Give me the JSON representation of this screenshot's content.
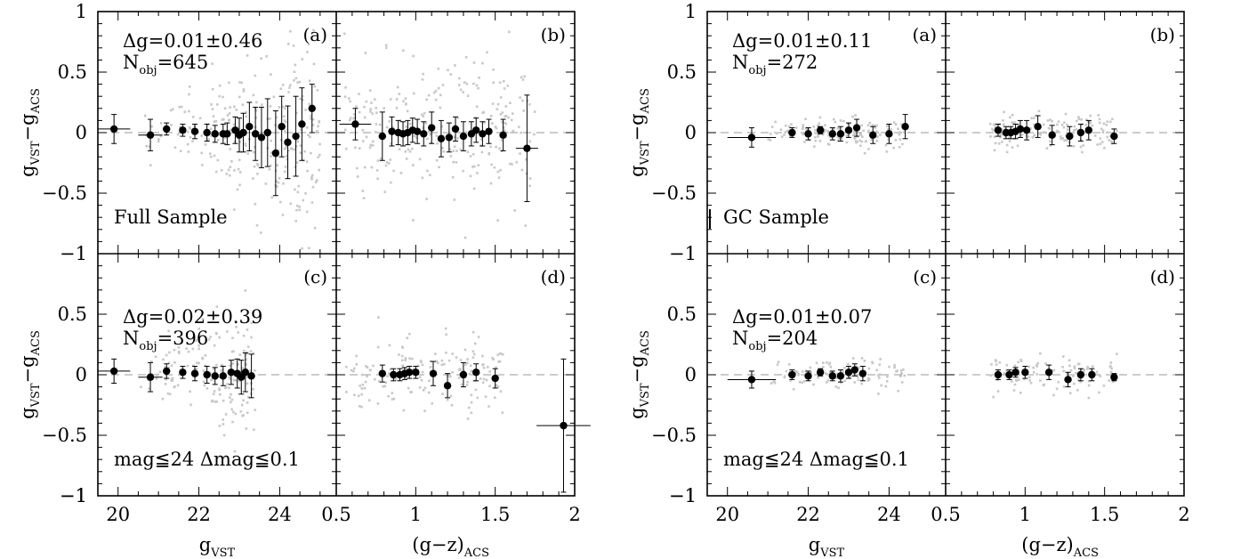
{
  "figures": [
    {
      "sample_label": "Full Sample",
      "panels": [
        {
          "id": "a",
          "label": "(a)",
          "stat": "Δg=0.01±0.46",
          "nobj": "=645"
        },
        {
          "id": "b",
          "label": "(b)"
        },
        {
          "id": "c",
          "label": "(c)",
          "stat": "Δg=0.02±0.39",
          "nobj": "=396",
          "cut": "mag≦24  Δmag≦0.1"
        },
        {
          "id": "d",
          "label": "(d)"
        }
      ]
    },
    {
      "sample_label": "GC Sample",
      "panels": [
        {
          "id": "a",
          "label": "(a)",
          "stat": "Δg=0.01±0.11",
          "nobj": "=272"
        },
        {
          "id": "b",
          "label": "(b)"
        },
        {
          "id": "c",
          "label": "(c)",
          "stat": "Δg=0.01±0.07",
          "nobj": "=204",
          "cut": "mag≦24  Δmag≦0.1"
        },
        {
          "id": "d",
          "label": "(d)"
        }
      ]
    }
  ],
  "axes": {
    "ylabel_main": "g",
    "ylabel_sub1": "VST",
    "ylabel_dash": "−g",
    "ylabel_sub2": "ACS",
    "xlabel_left_main": "g",
    "xlabel_left_sub": "VST",
    "xlabel_right_main": "(g−z)",
    "xlabel_right_sub": "ACS",
    "yticks": [
      "1",
      "0.5",
      "0",
      "−0.5",
      "−1"
    ],
    "xticks_left": [
      "20",
      "22",
      "24"
    ],
    "xticks_right": [
      "0.5",
      "1",
      "1.5",
      "2"
    ]
  },
  "chart_data": [
    {
      "type": "scatter",
      "figure": "Full Sample",
      "panel": "a",
      "xlim": [
        19.5,
        25.4
      ],
      "ylim": [
        -1,
        1
      ],
      "binned_points": [
        {
          "x": 19.9,
          "y": 0.03,
          "err": 0.12,
          "xerr": 0.4
        },
        {
          "x": 20.8,
          "y": -0.02,
          "err": 0.13,
          "xerr": 0.3
        },
        {
          "x": 21.2,
          "y": 0.03,
          "err": 0.05
        },
        {
          "x": 21.6,
          "y": 0.02,
          "err": 0.05
        },
        {
          "x": 21.9,
          "y": 0.01,
          "err": 0.06
        },
        {
          "x": 22.2,
          "y": 0.0,
          "err": 0.07
        },
        {
          "x": 22.4,
          "y": -0.01,
          "err": 0.07
        },
        {
          "x": 22.6,
          "y": -0.01,
          "err": 0.08
        },
        {
          "x": 22.7,
          "y": -0.01,
          "err": 0.09
        },
        {
          "x": 22.9,
          "y": 0.02,
          "err": 0.11
        },
        {
          "x": 23.0,
          "y": -0.02,
          "err": 0.14
        },
        {
          "x": 23.1,
          "y": 0.0,
          "err": 0.16
        },
        {
          "x": 23.25,
          "y": 0.05,
          "err": 0.2
        },
        {
          "x": 23.4,
          "y": -0.01,
          "err": 0.22
        },
        {
          "x": 23.55,
          "y": -0.04,
          "err": 0.25
        },
        {
          "x": 23.7,
          "y": 0.0,
          "err": 0.28
        },
        {
          "x": 23.9,
          "y": -0.17,
          "err": 0.35
        },
        {
          "x": 24.05,
          "y": 0.05,
          "err": 0.25
        },
        {
          "x": 24.2,
          "y": -0.08,
          "err": 0.3
        },
        {
          "x": 24.4,
          "y": -0.03,
          "err": 0.33
        },
        {
          "x": 24.55,
          "y": 0.07,
          "err": 0.3
        },
        {
          "x": 24.8,
          "y": 0.2,
          "err": 0.2
        }
      ]
    },
    {
      "type": "scatter",
      "figure": "Full Sample",
      "panel": "b",
      "xlim": [
        0.5,
        2.0
      ],
      "ylim": [
        -1,
        1
      ],
      "binned_points": [
        {
          "x": 0.62,
          "y": 0.07,
          "err": 0.13,
          "xerr": 0.1
        },
        {
          "x": 0.79,
          "y": -0.03,
          "err": 0.2
        },
        {
          "x": 0.85,
          "y": 0.01,
          "err": 0.12
        },
        {
          "x": 0.89,
          "y": 0.0,
          "err": 0.1
        },
        {
          "x": 0.92,
          "y": -0.01,
          "err": 0.1
        },
        {
          "x": 0.95,
          "y": 0.0,
          "err": 0.1
        },
        {
          "x": 0.98,
          "y": 0.02,
          "err": 0.1
        },
        {
          "x": 1.01,
          "y": 0.01,
          "err": 0.1
        },
        {
          "x": 1.05,
          "y": -0.01,
          "err": 0.1
        },
        {
          "x": 1.1,
          "y": 0.04,
          "err": 0.13
        },
        {
          "x": 1.16,
          "y": -0.05,
          "err": 0.15
        },
        {
          "x": 1.21,
          "y": -0.04,
          "err": 0.12
        },
        {
          "x": 1.25,
          "y": 0.03,
          "err": 0.1
        },
        {
          "x": 1.3,
          "y": -0.03,
          "err": 0.12
        },
        {
          "x": 1.35,
          "y": -0.01,
          "err": 0.1
        },
        {
          "x": 1.38,
          "y": 0.02,
          "err": 0.1
        },
        {
          "x": 1.42,
          "y": -0.01,
          "err": 0.1
        },
        {
          "x": 1.46,
          "y": 0.01,
          "err": 0.1
        },
        {
          "x": 1.55,
          "y": -0.02,
          "err": 0.13
        },
        {
          "x": 1.7,
          "y": -0.13,
          "err": 0.44,
          "xerr": 0.07
        }
      ]
    },
    {
      "type": "scatter",
      "figure": "Full Sample",
      "panel": "c",
      "xlim": [
        19.5,
        25.4
      ],
      "ylim": [
        -1,
        1
      ],
      "binned_points": [
        {
          "x": 19.9,
          "y": 0.03,
          "err": 0.1,
          "xerr": 0.4
        },
        {
          "x": 20.8,
          "y": -0.02,
          "err": 0.12,
          "xerr": 0.3
        },
        {
          "x": 21.2,
          "y": 0.03,
          "err": 0.06
        },
        {
          "x": 21.6,
          "y": 0.02,
          "err": 0.05
        },
        {
          "x": 21.9,
          "y": 0.01,
          "err": 0.06
        },
        {
          "x": 22.2,
          "y": 0.0,
          "err": 0.07
        },
        {
          "x": 22.4,
          "y": -0.01,
          "err": 0.07
        },
        {
          "x": 22.6,
          "y": -0.01,
          "err": 0.08
        },
        {
          "x": 22.8,
          "y": 0.02,
          "err": 0.1
        },
        {
          "x": 22.95,
          "y": 0.01,
          "err": 0.12
        },
        {
          "x": 23.05,
          "y": -0.02,
          "err": 0.14
        },
        {
          "x": 23.15,
          "y": 0.02,
          "err": 0.16
        },
        {
          "x": 23.3,
          "y": -0.01,
          "err": 0.18
        }
      ]
    },
    {
      "type": "scatter",
      "figure": "Full Sample",
      "panel": "d",
      "xlim": [
        0.5,
        2.0
      ],
      "ylim": [
        -1,
        1
      ],
      "binned_points": [
        {
          "x": 0.79,
          "y": 0.01,
          "err": 0.07
        },
        {
          "x": 0.86,
          "y": 0.0,
          "err": 0.05
        },
        {
          "x": 0.9,
          "y": 0.0,
          "err": 0.05
        },
        {
          "x": 0.93,
          "y": 0.01,
          "err": 0.05
        },
        {
          "x": 0.96,
          "y": 0.02,
          "err": 0.05
        },
        {
          "x": 1.0,
          "y": 0.02,
          "err": 0.05
        },
        {
          "x": 1.11,
          "y": 0.01,
          "err": 0.1
        },
        {
          "x": 1.2,
          "y": -0.09,
          "err": 0.1
        },
        {
          "x": 1.3,
          "y": -0.0,
          "err": 0.1
        },
        {
          "x": 1.38,
          "y": 0.02,
          "err": 0.07
        },
        {
          "x": 1.5,
          "y": -0.03,
          "err": 0.08
        },
        {
          "x": 1.93,
          "y": -0.42,
          "err": 0.55,
          "xerr": 0.17
        }
      ]
    },
    {
      "type": "scatter",
      "figure": "GC Sample",
      "panel": "a",
      "xlim": [
        19.5,
        25.4
      ],
      "ylim": [
        -1,
        1
      ],
      "binned_points": [
        {
          "x": 20.6,
          "y": -0.04,
          "err": 0.08,
          "xerr": 0.6
        },
        {
          "x": 21.6,
          "y": 0.0,
          "err": 0.04
        },
        {
          "x": 22.0,
          "y": -0.01,
          "err": 0.05
        },
        {
          "x": 22.3,
          "y": 0.02,
          "err": 0.03
        },
        {
          "x": 22.6,
          "y": -0.01,
          "err": 0.05
        },
        {
          "x": 22.8,
          "y": -0.01,
          "err": 0.06
        },
        {
          "x": 23.0,
          "y": 0.02,
          "err": 0.06
        },
        {
          "x": 23.2,
          "y": 0.04,
          "err": 0.07
        },
        {
          "x": 23.6,
          "y": -0.02,
          "err": 0.07
        },
        {
          "x": 24.0,
          "y": -0.01,
          "err": 0.08
        },
        {
          "x": 24.4,
          "y": 0.05,
          "err": 0.1
        }
      ]
    },
    {
      "type": "scatter",
      "figure": "GC Sample",
      "panel": "b",
      "xlim": [
        0.5,
        2.0
      ],
      "ylim": [
        -1,
        1
      ],
      "binned_points": [
        {
          "x": 0.83,
          "y": 0.02,
          "err": 0.05
        },
        {
          "x": 0.88,
          "y": 0.0,
          "err": 0.05
        },
        {
          "x": 0.91,
          "y": 0.0,
          "err": 0.05
        },
        {
          "x": 0.94,
          "y": 0.01,
          "err": 0.06
        },
        {
          "x": 0.97,
          "y": 0.03,
          "err": 0.07
        },
        {
          "x": 1.01,
          "y": 0.02,
          "err": 0.08
        },
        {
          "x": 1.08,
          "y": 0.05,
          "err": 0.09
        },
        {
          "x": 1.17,
          "y": -0.02,
          "err": 0.08
        },
        {
          "x": 1.28,
          "y": -0.03,
          "err": 0.08
        },
        {
          "x": 1.35,
          "y": 0.0,
          "err": 0.07
        },
        {
          "x": 1.4,
          "y": 0.02,
          "err": 0.08
        },
        {
          "x": 1.56,
          "y": -0.03,
          "err": 0.06
        }
      ]
    },
    {
      "type": "scatter",
      "figure": "GC Sample",
      "panel": "c",
      "xlim": [
        19.5,
        25.4
      ],
      "ylim": [
        -1,
        1
      ],
      "binned_points": [
        {
          "x": 20.6,
          "y": -0.04,
          "err": 0.07,
          "xerr": 0.6
        },
        {
          "x": 21.6,
          "y": 0.0,
          "err": 0.04
        },
        {
          "x": 22.0,
          "y": -0.01,
          "err": 0.04
        },
        {
          "x": 22.3,
          "y": 0.02,
          "err": 0.03
        },
        {
          "x": 22.6,
          "y": -0.01,
          "err": 0.04
        },
        {
          "x": 22.8,
          "y": -0.01,
          "err": 0.05
        },
        {
          "x": 23.0,
          "y": 0.02,
          "err": 0.05
        },
        {
          "x": 23.15,
          "y": 0.04,
          "err": 0.05
        },
        {
          "x": 23.35,
          "y": 0.01,
          "err": 0.06
        }
      ]
    },
    {
      "type": "scatter",
      "figure": "GC Sample",
      "panel": "d",
      "xlim": [
        0.5,
        2.0
      ],
      "ylim": [
        -1,
        1
      ],
      "binned_points": [
        {
          "x": 0.83,
          "y": 0.0,
          "err": 0.04
        },
        {
          "x": 0.9,
          "y": 0.0,
          "err": 0.04
        },
        {
          "x": 0.94,
          "y": 0.02,
          "err": 0.04
        },
        {
          "x": 1.0,
          "y": 0.02,
          "err": 0.05
        },
        {
          "x": 1.15,
          "y": 0.02,
          "err": 0.06
        },
        {
          "x": 1.27,
          "y": -0.04,
          "err": 0.06
        },
        {
          "x": 1.35,
          "y": 0.0,
          "err": 0.05
        },
        {
          "x": 1.42,
          "y": 0.0,
          "err": 0.05
        },
        {
          "x": 1.56,
          "y": -0.02,
          "err": 0.03
        }
      ]
    }
  ]
}
